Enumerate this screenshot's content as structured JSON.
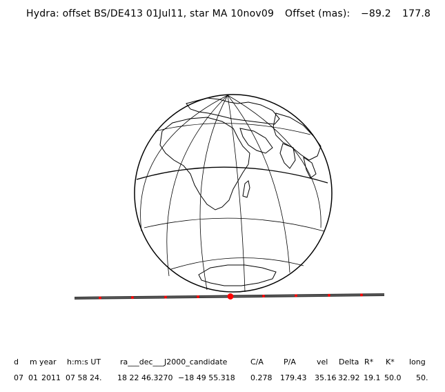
{
  "header": {
    "title": "Hydra: offset BS/DE413 01Jul11, star MA 10nov09",
    "offset_label": "Offset (mas):",
    "offset_x": "−89.2",
    "offset_y": "177.8"
  },
  "table": {
    "headers": {
      "d": "d",
      "m": "m",
      "year": "year",
      "hms": "h:m:s UT",
      "radec": "ra___dec___J2000_candidate",
      "ca": "C/A",
      "pa": "P/A",
      "vel": "vel",
      "delta": "Delta",
      "rstar": "R*",
      "kstar": "K*",
      "long": "long"
    },
    "values": {
      "d": "07",
      "m": "01",
      "year": "2011",
      "hms": "07 58 24.",
      "ra": "18 22 46.3270",
      "dec": "−18 49 55.318",
      "ca": "0.278",
      "pa": "179.43",
      "vel": "35.16",
      "delta": "32.92",
      "rstar": "19.1",
      "kstar": "50.0",
      "long": "50."
    }
  },
  "colors": {
    "line": "#000000",
    "track": "#333333",
    "marker": "#ff0000"
  },
  "icons": {
    "globe": "globe-icon",
    "marker": "dot-icon"
  }
}
